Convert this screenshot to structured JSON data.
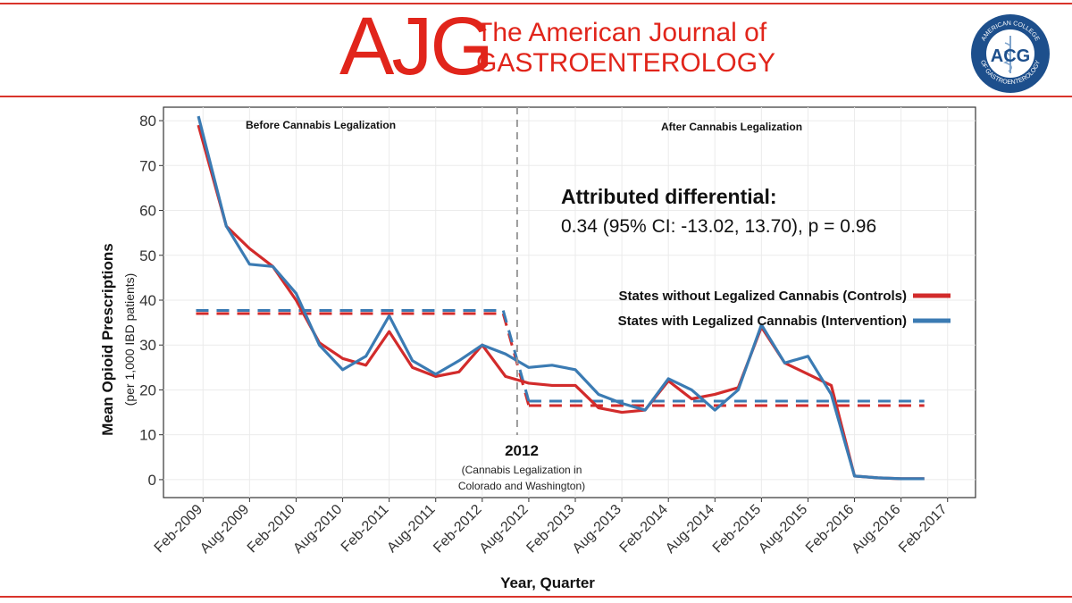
{
  "header": {
    "logo_text": "AJG",
    "journal_line1": "The American Journal of",
    "journal_line2": "GASTROENTEROLOGY",
    "seal_top_text": "AMERICAN COLLEGE",
    "seal_bottom_text": "OF GASTROENTEROLOGY",
    "seal_center_text": "ACG"
  },
  "colors": {
    "brand_red": "#e1251b",
    "controls": "#d22b2b",
    "intervention": "#3b7bb3",
    "seal_navy": "#1d4f8c"
  },
  "chart_data": {
    "type": "line",
    "title": "",
    "xlabel": "Year, Quarter",
    "ylabel": "Mean Opioid Prescriptions",
    "ylabel_sub": "(per 1,000 IBD patients)",
    "ylim": [
      -4,
      83
    ],
    "yticks": [
      0,
      10,
      20,
      30,
      40,
      50,
      60,
      70,
      80
    ],
    "xlim": [
      -1.7,
      33.2
    ],
    "xtick_positions": [
      0,
      2,
      4,
      6,
      8,
      10,
      12,
      14,
      16,
      18,
      20,
      22,
      24,
      26,
      28,
      30,
      32
    ],
    "xtick_labels": [
      "Feb-2009",
      "Aug-2009",
      "Feb-2010",
      "Aug-2010",
      "Feb-2011",
      "Aug-2011",
      "Feb-2012",
      "Aug-2012",
      "Feb-2013",
      "Aug-2013",
      "Feb-2014",
      "Aug-2014",
      "Feb-2015",
      "Aug-2015",
      "Feb-2016",
      "Aug-2016",
      "Feb-2017"
    ],
    "x": [
      -0.2,
      1,
      2,
      3,
      4,
      5,
      6,
      7,
      8,
      9,
      10,
      11,
      12,
      13,
      14,
      15,
      16,
      17,
      18,
      19,
      20,
      21,
      22,
      23,
      24,
      25,
      26,
      27,
      28,
      29,
      30,
      31
    ],
    "series": [
      {
        "name": "States without Legalized Cannabis (Controls)",
        "color": "#d22b2b",
        "values": [
          79,
          56.5,
          51.5,
          47.5,
          40,
          30.5,
          27,
          25.5,
          33,
          25,
          23,
          24,
          30,
          23,
          21.5,
          21,
          21,
          16,
          15,
          15.5,
          22,
          18,
          19,
          20.5,
          34,
          26,
          23.5,
          21,
          0.8,
          0.4,
          0.2,
          0.2
        ]
      },
      {
        "name": "States with Legalized Cannabis (Intervention)",
        "color": "#3b7bb3",
        "values": [
          81,
          56.5,
          48,
          47.5,
          41.5,
          30,
          24.5,
          27.5,
          36.5,
          26.5,
          23.5,
          26.5,
          30,
          28,
          25,
          25.5,
          24.5,
          19,
          17,
          15.5,
          22.5,
          20,
          15.5,
          20,
          34.5,
          26,
          27.5,
          19,
          0.8,
          0.4,
          0.2,
          0.2
        ]
      }
    ],
    "pre_period_means": {
      "controls": 37,
      "intervention": 37.7,
      "x_start": -0.3,
      "x_end": 12.9
    },
    "post_period_means": {
      "controls": 16.5,
      "intervention": 17.5,
      "x_start": 14,
      "x_end": 31
    },
    "legalization_line_x": 13.5,
    "region_labels": {
      "before": "Before Cannabis Legalization",
      "after": "After Cannabis Legalization"
    },
    "annotations": {
      "differential_title": "Attributed differential:",
      "differential_value": "0.34 (95% CI: -13.02, 13.70), p = 0.96",
      "year_label": "2012",
      "year_note_line1": "(Cannabis Legalization in",
      "year_note_line2": "Colorado and Washington)"
    },
    "legend": {
      "placement": "right",
      "entries": [
        "States without Legalized Cannabis (Controls)",
        "States with Legalized Cannabis (Intervention)"
      ]
    }
  }
}
